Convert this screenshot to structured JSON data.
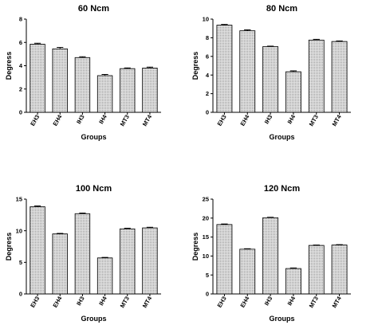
{
  "figure": {
    "background": "#ffffff",
    "bar_fill": "#d6d6d6",
    "bar_stroke": "#000000"
  },
  "chart_data": [
    {
      "type": "bar",
      "title": "60 Ncm",
      "xlabel": "Groups",
      "ylabel": "Degress",
      "categories": [
        "EH3",
        "EH4",
        "IH3",
        "IH4",
        "MT3",
        "MT4"
      ],
      "values": [
        5.85,
        5.45,
        4.7,
        3.15,
        3.75,
        3.8
      ],
      "errors": [
        0.08,
        0.12,
        0.07,
        0.1,
        0.06,
        0.08
      ],
      "ylim": [
        0,
        8
      ],
      "yticks": [
        0,
        2,
        4,
        6,
        8
      ],
      "tick_labels": [
        "0",
        "2",
        "4",
        "6",
        "8"
      ],
      "grid": false
    },
    {
      "type": "bar",
      "title": "80 Ncm",
      "xlabel": "Groups",
      "ylabel": "Degress",
      "categories": [
        "EH3",
        "EH4",
        "IH3",
        "IH4",
        "MT3",
        "MT4"
      ],
      "values": [
        9.35,
        8.75,
        7.05,
        4.35,
        7.75,
        7.6
      ],
      "errors": [
        0.08,
        0.1,
        0.05,
        0.1,
        0.08,
        0.06
      ],
      "ylim": [
        0,
        10
      ],
      "yticks": [
        0,
        2,
        4,
        6,
        8,
        10
      ],
      "tick_labels": [
        "0",
        "2",
        "4",
        "6",
        "8",
        "10"
      ],
      "grid": false
    },
    {
      "type": "bar",
      "title": "100 Ncm",
      "xlabel": "Groups",
      "ylabel": "Degress",
      "categories": [
        "EH3",
        "EH4",
        "IH3",
        "IH4",
        "MT3",
        "MT4"
      ],
      "values": [
        13.8,
        9.5,
        12.7,
        5.7,
        10.3,
        10.45
      ],
      "errors": [
        0.12,
        0.08,
        0.1,
        0.08,
        0.1,
        0.1
      ],
      "ylim": [
        0,
        15
      ],
      "yticks": [
        0,
        5,
        10,
        15
      ],
      "tick_labels": [
        "0",
        "5",
        "10",
        "15"
      ],
      "grid": false
    },
    {
      "type": "bar",
      "title": "120 Ncm",
      "xlabel": "Groups",
      "ylabel": "Degress",
      "categories": [
        "EH3",
        "EH4",
        "IH3",
        "IH4",
        "MT3",
        "MT4"
      ],
      "values": [
        18.3,
        11.8,
        20.1,
        6.7,
        12.8,
        12.9
      ],
      "errors": [
        0.15,
        0.12,
        0.12,
        0.15,
        0.1,
        0.1
      ],
      "ylim": [
        0,
        25
      ],
      "yticks": [
        0,
        5,
        10,
        15,
        20,
        25
      ],
      "tick_labels": [
        "0",
        "5",
        "10",
        "15",
        "20",
        "25"
      ],
      "grid": false
    }
  ]
}
